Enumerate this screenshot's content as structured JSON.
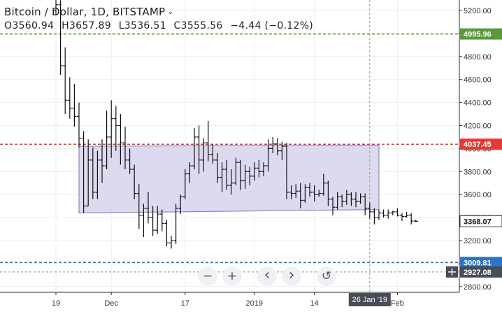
{
  "legend": {
    "title": "Bitcoin / Dollar, 1D, BITSTAMP",
    "open": "O3560.94",
    "high": "H3657.89",
    "low": "L3536.51",
    "close": "C3555.56",
    "change": "−4.44 (−0.12%)"
  },
  "toolbar": {
    "zoom_out": "−",
    "zoom_in": "+",
    "scroll_left": "‹",
    "scroll_right": "›",
    "reset": "↺"
  },
  "colors": {
    "green_line": "#5a9a3a",
    "red_line": "#e53935",
    "blue_line": "#2e73c7",
    "rect_fill": "#d7d3ec",
    "rect_stroke": "#8f88c0",
    "crosshair_label": "#474d57"
  },
  "chart_data": {
    "type": "ohlc",
    "price_axis": {
      "ticks": [
        "5200.00",
        "5000.00",
        "4800.00",
        "4600.00",
        "4400.00",
        "4200.00",
        "4000.00",
        "3800.00",
        "3600.00",
        "3400.00",
        "3200.00",
        "3000.00",
        "2800.00"
      ]
    },
    "time_axis": {
      "ticks": [
        {
          "label": "19",
          "day": 0
        },
        {
          "label": "Dec",
          "day": 12
        },
        {
          "label": "17",
          "day": 28
        },
        {
          "label": "2019",
          "day": 43
        },
        {
          "label": "14",
          "day": 56
        },
        {
          "label": "Feb",
          "day": 74
        }
      ],
      "crosshair_label": "26 Jan '19",
      "crosshair_day": 68
    },
    "levels": [
      {
        "name": "green",
        "value": 4995.96,
        "label": "4995.96",
        "style": "dashed"
      },
      {
        "name": "red",
        "value": 4037.45,
        "label": "4037.45",
        "style": "dashed"
      },
      {
        "name": "current",
        "value": 3368.07,
        "label": "3368.07",
        "style": "none"
      },
      {
        "name": "blue",
        "value": 3009.81,
        "label": "3009.81",
        "style": "dashed"
      },
      {
        "name": "crosshair",
        "value": 2927.08,
        "label": "2927.08",
        "style": "dashed"
      }
    ],
    "rectangle": {
      "day_start": 5,
      "day_end": 70,
      "top_start": 4020,
      "top_end": 4030,
      "bottom_start": 3440,
      "bottom_end": 3470
    },
    "bars": [
      [
        5200,
        5290,
        5160,
        5250
      ],
      [
        5250,
        5290,
        4640,
        4720
      ],
      [
        4720,
        4880,
        4300,
        4420
      ],
      [
        4420,
        4620,
        4260,
        4350
      ],
      [
        4350,
        4560,
        4190,
        4280
      ],
      [
        4280,
        4400,
        4010,
        4090
      ],
      [
        4090,
        4150,
        3440,
        3500
      ],
      [
        3500,
        4080,
        3500,
        3900
      ],
      [
        3900,
        4010,
        3560,
        3620
      ],
      [
        3620,
        3980,
        3560,
        3900
      ],
      [
        3900,
        4080,
        3700,
        3850
      ],
      [
        3850,
        4330,
        3820,
        4100
      ],
      [
        4100,
        4420,
        3920,
        4260
      ],
      [
        4260,
        4370,
        3980,
        4200
      ],
      [
        4200,
        4300,
        3860,
        4050
      ],
      [
        4050,
        4190,
        3820,
        3900
      ],
      [
        3900,
        4000,
        3780,
        3820
      ],
      [
        3820,
        3860,
        3560,
        3610
      ],
      [
        3610,
        3690,
        3300,
        3420
      ],
      [
        3420,
        3520,
        3230,
        3480
      ],
      [
        3480,
        3620,
        3350,
        3400
      ],
      [
        3400,
        3500,
        3240,
        3290
      ],
      [
        3290,
        3500,
        3260,
        3430
      ],
      [
        3430,
        3470,
        3280,
        3350
      ],
      [
        3350,
        3380,
        3150,
        3180
      ],
      [
        3180,
        3240,
        3130,
        3200
      ],
      [
        3200,
        3520,
        3170,
        3480
      ],
      [
        3480,
        3600,
        3430,
        3580
      ],
      [
        3580,
        3820,
        3560,
        3780
      ],
      [
        3780,
        3880,
        3700,
        3850
      ],
      [
        3850,
        4180,
        3820,
        4100
      ],
      [
        4100,
        4200,
        3780,
        3900
      ],
      [
        3900,
        4090,
        3800,
        4050
      ],
      [
        4050,
        4240,
        3890,
        3950
      ],
      [
        3950,
        4040,
        3870,
        3900
      ],
      [
        3900,
        3960,
        3700,
        3750
      ],
      [
        3750,
        3880,
        3620,
        3820
      ],
      [
        3820,
        3900,
        3640,
        3680
      ],
      [
        3680,
        3820,
        3600,
        3700
      ],
      [
        3700,
        3920,
        3680,
        3880
      ],
      [
        3880,
        3900,
        3640,
        3720
      ],
      [
        3720,
        3860,
        3650,
        3800
      ],
      [
        3800,
        3840,
        3680,
        3760
      ],
      [
        3760,
        3880,
        3720,
        3830
      ],
      [
        3830,
        3900,
        3750,
        3800
      ],
      [
        3800,
        3880,
        3760,
        3850
      ],
      [
        3850,
        4080,
        3800,
        4000
      ],
      [
        4000,
        4100,
        3960,
        4040
      ],
      [
        4040,
        4090,
        3940,
        3980
      ],
      [
        3980,
        4060,
        3900,
        4020
      ],
      [
        4020,
        4050,
        3560,
        3620
      ],
      [
        3620,
        3680,
        3560,
        3610
      ],
      [
        3610,
        3690,
        3570,
        3630
      ],
      [
        3630,
        3700,
        3480,
        3550
      ],
      [
        3550,
        3690,
        3530,
        3660
      ],
      [
        3660,
        3700,
        3580,
        3620
      ],
      [
        3620,
        3680,
        3540,
        3600
      ],
      [
        3600,
        3640,
        3580,
        3610
      ],
      [
        3610,
        3780,
        3590,
        3700
      ],
      [
        3700,
        3720,
        3500,
        3560
      ],
      [
        3560,
        3580,
        3420,
        3490
      ],
      [
        3490,
        3620,
        3470,
        3580
      ],
      [
        3580,
        3600,
        3490,
        3540
      ],
      [
        3540,
        3640,
        3510,
        3600
      ],
      [
        3600,
        3620,
        3500,
        3560
      ],
      [
        3560,
        3620,
        3490,
        3540
      ],
      [
        3540,
        3610,
        3520,
        3580
      ],
      [
        3580,
        3610,
        3420,
        3480
      ],
      [
        3480,
        3530,
        3390,
        3450
      ],
      [
        3450,
        3480,
        3340,
        3400
      ],
      [
        3400,
        3470,
        3380,
        3440
      ],
      [
        3440,
        3470,
        3400,
        3420
      ],
      [
        3420,
        3470,
        3390,
        3440
      ],
      [
        3440,
        3460,
        3420,
        3450
      ],
      [
        3450,
        3480,
        3410,
        3420
      ],
      [
        3420,
        3440,
        3370,
        3410
      ],
      [
        3410,
        3450,
        3400,
        3420
      ],
      [
        3420,
        3440,
        3340,
        3370
      ],
      [
        3370,
        3380,
        3360,
        3368.07
      ]
    ]
  }
}
